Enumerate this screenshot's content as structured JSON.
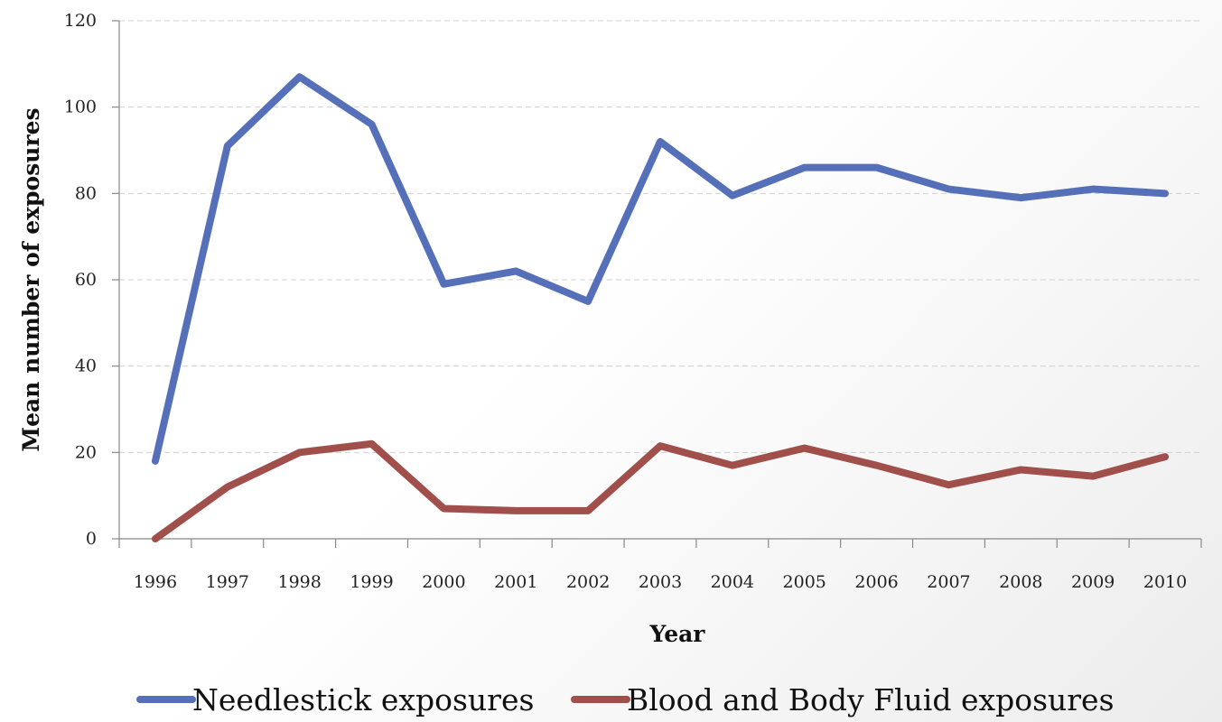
{
  "chart_data": {
    "type": "line",
    "title": "",
    "xlabel": "Year",
    "ylabel": "Mean number of exposures",
    "categories": [
      "1996",
      "1997",
      "1998",
      "1999",
      "2000",
      "2001",
      "2002",
      "2003",
      "2004",
      "2005",
      "2006",
      "2007",
      "2008",
      "2009",
      "2010"
    ],
    "ylim": [
      0,
      120
    ],
    "yticks": [
      0,
      20,
      40,
      60,
      80,
      100,
      120
    ],
    "grid": true,
    "legend_position": "bottom",
    "series": [
      {
        "name": "Needlestick exposures",
        "color": "#5570b8",
        "values": [
          18,
          91,
          107,
          96,
          59,
          62,
          55,
          92,
          79.5,
          86,
          86,
          81,
          79,
          81,
          80
        ]
      },
      {
        "name": "Blood and Body Fluid exposures",
        "color": "#a04f4b",
        "values": [
          0,
          12,
          20,
          22,
          7,
          6.5,
          6.5,
          21.5,
          17,
          21,
          17,
          12.5,
          16,
          14.5,
          19
        ]
      }
    ]
  }
}
